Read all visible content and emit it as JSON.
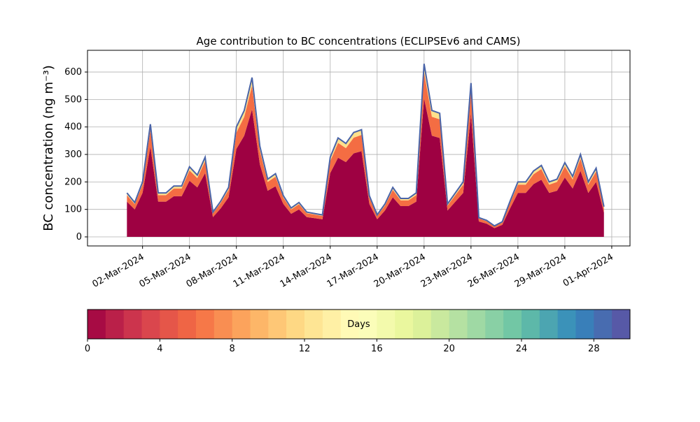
{
  "chart_data": {
    "type": "stacked_area",
    "title": "Age contribution to BC concentrations (ECLIPSEv6 and CAMS)",
    "y_label": "BC concentration (ng m⁻³)",
    "x": [
      "2024-03-01T00:00",
      "2024-03-01T12:00",
      "2024-03-02T00:00",
      "2024-03-02T12:00",
      "2024-03-03T00:00",
      "2024-03-03T12:00",
      "2024-03-04T00:00",
      "2024-03-04T12:00",
      "2024-03-05T00:00",
      "2024-03-05T12:00",
      "2024-03-06T00:00",
      "2024-03-06T12:00",
      "2024-03-07T00:00",
      "2024-03-07T12:00",
      "2024-03-08T00:00",
      "2024-03-08T12:00",
      "2024-03-09T00:00",
      "2024-03-09T12:00",
      "2024-03-10T00:00",
      "2024-03-10T12:00",
      "2024-03-11T00:00",
      "2024-03-11T12:00",
      "2024-03-12T00:00",
      "2024-03-12T12:00",
      "2024-03-13T00:00",
      "2024-03-13T12:00",
      "2024-03-14T00:00",
      "2024-03-14T12:00",
      "2024-03-15T00:00",
      "2024-03-15T12:00",
      "2024-03-16T00:00",
      "2024-03-16T12:00",
      "2024-03-17T00:00",
      "2024-03-17T12:00",
      "2024-03-18T00:00",
      "2024-03-18T12:00",
      "2024-03-19T00:00",
      "2024-03-19T12:00",
      "2024-03-20T00:00",
      "2024-03-20T12:00",
      "2024-03-21T00:00",
      "2024-03-21T12:00",
      "2024-03-22T00:00",
      "2024-03-22T12:00",
      "2024-03-23T00:00",
      "2024-03-23T12:00",
      "2024-03-24T00:00",
      "2024-03-24T12:00",
      "2024-03-25T00:00",
      "2024-03-25T12:00",
      "2024-03-26T00:00",
      "2024-03-26T12:00",
      "2024-03-27T00:00",
      "2024-03-27T12:00",
      "2024-03-28T00:00",
      "2024-03-28T12:00",
      "2024-03-29T00:00",
      "2024-03-29T12:00",
      "2024-03-30T00:00",
      "2024-03-30T12:00",
      "2024-03-31T00:00",
      "2024-03-31T12:00"
    ],
    "series": [
      {
        "color": "#9e0142",
        "values": [
          128,
          100,
          160,
          328,
          128,
          128,
          148,
          148,
          204,
          180,
          232,
          72,
          104,
          144,
          320,
          368,
          464,
          264,
          168,
          184,
          120,
          84,
          100,
          72,
          68,
          64,
          232,
          288,
          272,
          304,
          312,
          120,
          64,
          96,
          144,
          112,
          112,
          128,
          504,
          368,
          360,
          96,
          128,
          160,
          448,
          56,
          48,
          32,
          44,
          104,
          160,
          160,
          192,
          208,
          160,
          168,
          216,
          176,
          240,
          160,
          200,
          88
        ]
      },
      {
        "color": "#f46d43",
        "values": [
          24,
          19,
          30,
          62,
          24,
          24,
          28,
          28,
          38,
          34,
          44,
          14,
          20,
          27,
          60,
          69,
          87,
          50,
          32,
          35,
          23,
          16,
          19,
          14,
          13,
          12,
          44,
          54,
          51,
          57,
          59,
          23,
          12,
          18,
          27,
          21,
          21,
          24,
          95,
          69,
          68,
          18,
          24,
          30,
          84,
          11,
          9,
          6,
          8,
          20,
          30,
          30,
          36,
          39,
          30,
          32,
          41,
          33,
          45,
          30,
          38,
          17
        ]
      },
      {
        "color": "#fee08b",
        "edge_color": "#4a64a8",
        "values": [
          8,
          6,
          10,
          20,
          8,
          8,
          9,
          9,
          13,
          11,
          14,
          4,
          6,
          9,
          20,
          23,
          29,
          16,
          10,
          11,
          7,
          5,
          6,
          4,
          4,
          4,
          14,
          18,
          17,
          19,
          19,
          7,
          4,
          6,
          9,
          7,
          7,
          8,
          31,
          23,
          22,
          6,
          8,
          10,
          28,
          3,
          3,
          2,
          3,
          6,
          10,
          10,
          12,
          13,
          10,
          10,
          13,
          11,
          15,
          10,
          12,
          5
        ]
      }
    ],
    "xlim": [
      "2024-02-27T11:30",
      "2024-04-02T04:00"
    ],
    "xticks": [
      {
        "value": "2024-03-02T00:00",
        "label": "02-Mar-2024"
      },
      {
        "value": "2024-03-05T00:00",
        "label": "05-Mar-2024"
      },
      {
        "value": "2024-03-08T00:00",
        "label": "08-Mar-2024"
      },
      {
        "value": "2024-03-11T00:00",
        "label": "11-Mar-2024"
      },
      {
        "value": "2024-03-14T00:00",
        "label": "14-Mar-2024"
      },
      {
        "value": "2024-03-17T00:00",
        "label": "17-Mar-2024"
      },
      {
        "value": "2024-03-20T00:00",
        "label": "20-Mar-2024"
      },
      {
        "value": "2024-03-23T00:00",
        "label": "23-Mar-2024"
      },
      {
        "value": "2024-03-26T00:00",
        "label": "26-Mar-2024"
      },
      {
        "value": "2024-03-29T00:00",
        "label": "29-Mar-2024"
      },
      {
        "value": "2024-04-01T00:00",
        "label": "01-Apr-2024"
      }
    ],
    "ylim": [
      -33,
      679
    ],
    "yticks": [
      0,
      100,
      200,
      300,
      400,
      500,
      600
    ],
    "grid": true,
    "colorbar": {
      "label": "Days",
      "lim": [
        0,
        30
      ],
      "ticks": [
        0,
        4,
        8,
        12,
        16,
        20,
        24,
        28
      ],
      "colors": [
        "#9e0142",
        "#d53e4f",
        "#f46d43",
        "#fdae61",
        "#fee08b",
        "#ffffbf",
        "#e6f598",
        "#abdda4",
        "#66c2a5",
        "#3288bd",
        "#5e4fa2"
      ]
    }
  }
}
